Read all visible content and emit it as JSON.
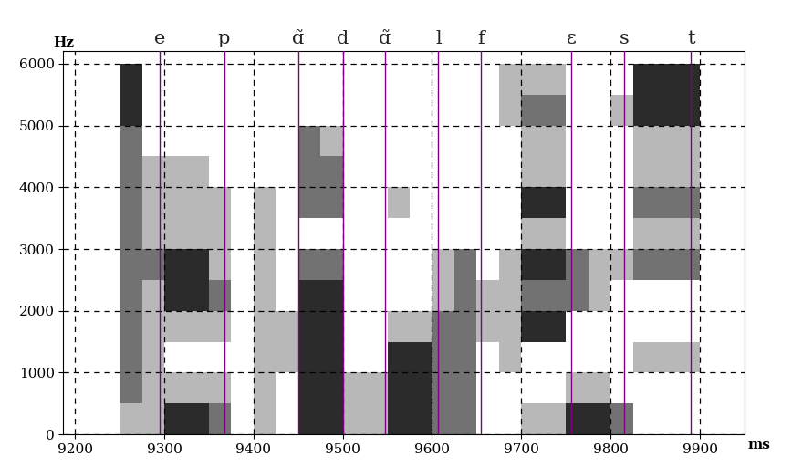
{
  "chart_data": {
    "type": "spectrogram",
    "x_label": "ms",
    "y_label": "Hz",
    "xlim": [
      9187,
      9950
    ],
    "ylim": [
      0,
      6200
    ],
    "xticks": [
      9200,
      9300,
      9400,
      9500,
      9600,
      9700,
      9800,
      9900
    ],
    "yticks": [
      0,
      1000,
      2000,
      3000,
      4000,
      5000,
      6000
    ],
    "grid": true,
    "segments": [
      {
        "label": "e",
        "time": 9295
      },
      {
        "label": "p",
        "time": 9367
      },
      {
        "label": "ɑ̃",
        "time": 9450
      },
      {
        "label": "d",
        "time": 9500
      },
      {
        "label": "ɑ̃",
        "time": 9547
      },
      {
        "label": "l",
        "time": 9607
      },
      {
        "label": "f",
        "time": 9655
      },
      {
        "label": "ɛ",
        "time": 9756
      },
      {
        "label": "s",
        "time": 9815
      },
      {
        "label": "t",
        "time": 9890
      }
    ],
    "time_bins": [
      9200,
      9225,
      9250,
      9275,
      9300,
      9325,
      9350,
      9375,
      9400,
      9425,
      9450,
      9475,
      9500,
      9525,
      9550,
      9575,
      9600,
      9625,
      9650,
      9675,
      9700,
      9725,
      9750,
      9775,
      9800,
      9825,
      9850,
      9875,
      9900
    ],
    "freq_bins": [
      0,
      500,
      1000,
      1500,
      2000,
      2500,
      3000,
      3500,
      4000,
      4500,
      5000,
      5500,
      6000
    ],
    "cell_range": [
      0,
      3
    ],
    "cells": [
      [
        0,
        0,
        1,
        1,
        3,
        3,
        2,
        0,
        1,
        0,
        3,
        3,
        1,
        1,
        3,
        3,
        2,
        2,
        0,
        0,
        1,
        1,
        3,
        3,
        2,
        0,
        0,
        0
      ],
      [
        0,
        0,
        2,
        1,
        1,
        1,
        1,
        0,
        1,
        0,
        3,
        3,
        1,
        1,
        3,
        3,
        2,
        2,
        0,
        0,
        0,
        0,
        1,
        1,
        0,
        0,
        0,
        0
      ],
      [
        0,
        0,
        2,
        1,
        0,
        0,
        0,
        0,
        1,
        1,
        3,
        3,
        0,
        0,
        3,
        3,
        2,
        2,
        0,
        1,
        0,
        0,
        0,
        0,
        0,
        1,
        1,
        1
      ],
      [
        0,
        0,
        2,
        1,
        1,
        1,
        1,
        0,
        1,
        1,
        3,
        3,
        0,
        0,
        1,
        1,
        2,
        2,
        1,
        1,
        3,
        3,
        0,
        0,
        0,
        0,
        0,
        0
      ],
      [
        0,
        0,
        2,
        1,
        3,
        3,
        2,
        0,
        1,
        0,
        3,
        3,
        0,
        0,
        0,
        0,
        1,
        2,
        1,
        1,
        2,
        2,
        2,
        1,
        0,
        0,
        0,
        0
      ],
      [
        0,
        0,
        2,
        2,
        3,
        3,
        1,
        0,
        1,
        0,
        2,
        2,
        0,
        0,
        0,
        0,
        1,
        2,
        0,
        1,
        3,
        3,
        2,
        1,
        1,
        2,
        2,
        2
      ],
      [
        0,
        0,
        2,
        1,
        1,
        1,
        1,
        0,
        1,
        0,
        0,
        0,
        0,
        0,
        0,
        0,
        0,
        0,
        0,
        0,
        1,
        1,
        0,
        0,
        0,
        1,
        1,
        1
      ],
      [
        0,
        0,
        2,
        1,
        1,
        1,
        1,
        0,
        1,
        0,
        2,
        2,
        0,
        0,
        1,
        0,
        0,
        0,
        0,
        0,
        3,
        3,
        0,
        0,
        0,
        2,
        2,
        2
      ],
      [
        0,
        0,
        2,
        1,
        1,
        1,
        0,
        0,
        0,
        0,
        2,
        2,
        0,
        0,
        0,
        0,
        0,
        0,
        0,
        0,
        1,
        1,
        0,
        0,
        0,
        1,
        1,
        1
      ],
      [
        0,
        0,
        2,
        0,
        0,
        0,
        0,
        0,
        0,
        0,
        2,
        1,
        0,
        0,
        0,
        0,
        0,
        0,
        0,
        0,
        1,
        1,
        0,
        0,
        0,
        1,
        1,
        1
      ],
      [
        0,
        0,
        3,
        0,
        0,
        0,
        0,
        0,
        0,
        0,
        0,
        0,
        0,
        0,
        0,
        0,
        0,
        0,
        0,
        1,
        2,
        2,
        0,
        0,
        1,
        3,
        3,
        3
      ],
      [
        0,
        0,
        3,
        0,
        0,
        0,
        0,
        0,
        0,
        0,
        0,
        0,
        0,
        0,
        0,
        0,
        0,
        0,
        0,
        1,
        1,
        1,
        0,
        0,
        0,
        3,
        3,
        3
      ]
    ]
  }
}
